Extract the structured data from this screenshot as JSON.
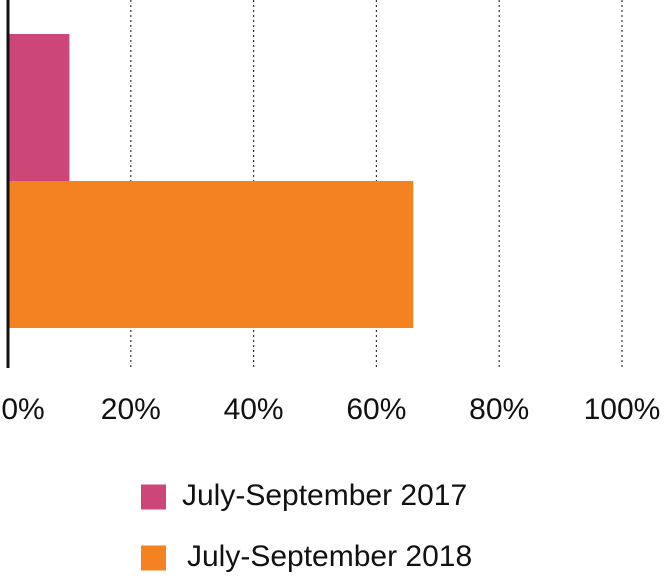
{
  "chart_data": {
    "type": "bar",
    "orientation": "horizontal",
    "categories": [
      null
    ],
    "series": [
      {
        "name": "July-September 2017",
        "color": "#cc4677",
        "values": [
          10
        ]
      },
      {
        "name": "July-September 2018",
        "color": "#f58220",
        "values": [
          66
        ]
      }
    ],
    "xlim": [
      0,
      100
    ],
    "xticks": [
      {
        "value": 0,
        "label": "0%"
      },
      {
        "value": 20,
        "label": "20%"
      },
      {
        "value": 40,
        "label": "40%"
      },
      {
        "value": 60,
        "label": "60%"
      },
      {
        "value": 80,
        "label": "80%"
      },
      {
        "value": 100,
        "label": "100%"
      }
    ],
    "grid": true,
    "legend": "bottom"
  }
}
